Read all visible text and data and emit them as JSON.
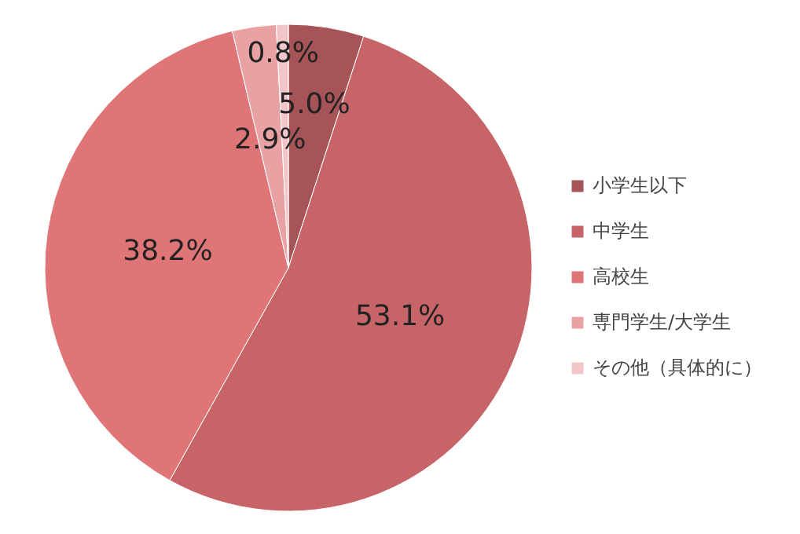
{
  "chart_data": {
    "type": "pie",
    "categories": [
      "小学生以下",
      "中学生",
      "高校生",
      "専門学生/大学生",
      "その他（具体的に）"
    ],
    "values": [
      5.0,
      53.1,
      38.2,
      2.9,
      0.8
    ],
    "colors": [
      "#a65458",
      "#c66468",
      "#e07578",
      "#e9a2a4",
      "#f2c6c8"
    ],
    "value_labels": [
      "5.0%",
      "53.1%",
      "38.2%",
      "2.9%",
      "0.8%"
    ],
    "legend": "right"
  }
}
